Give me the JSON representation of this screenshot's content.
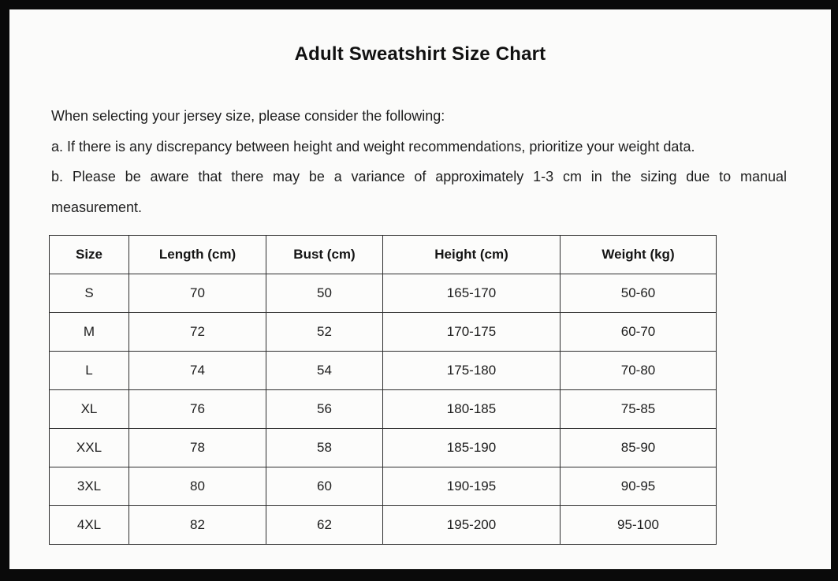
{
  "page": {
    "title": "Adult Sweatshirt Size Chart",
    "intro": "When selecting your jersey size, please consider the following:",
    "note_a": "a. If there is any discrepancy between height and weight recommendations, prioritize your weight data.",
    "note_b_line1": "b. Please be aware that there may be a variance of approximately 1-3 cm in the sizing due to manual",
    "note_b_line2": "measurement."
  },
  "chart_data": {
    "type": "table",
    "title": "Adult Sweatshirt Size Chart",
    "columns": [
      "Size",
      "Length (cm)",
      "Bust (cm)",
      "Height (cm)",
      "Weight (kg)"
    ],
    "rows": [
      [
        "S",
        "70",
        "50",
        "165-170",
        "50-60"
      ],
      [
        "M",
        "72",
        "52",
        "170-175",
        "60-70"
      ],
      [
        "L",
        "74",
        "54",
        "175-180",
        "70-80"
      ],
      [
        "XL",
        "76",
        "56",
        "180-185",
        "75-85"
      ],
      [
        "XXL",
        "78",
        "58",
        "185-190",
        "85-90"
      ],
      [
        "3XL",
        "80",
        "60",
        "190-195",
        "90-95"
      ],
      [
        "4XL",
        "82",
        "62",
        "195-200",
        "95-100"
      ]
    ]
  },
  "colors": {
    "frame": "#0a0a0a",
    "page_background": "#fbfbfa",
    "text": "#1c1c1c",
    "table_border": "#2e2e2e"
  }
}
